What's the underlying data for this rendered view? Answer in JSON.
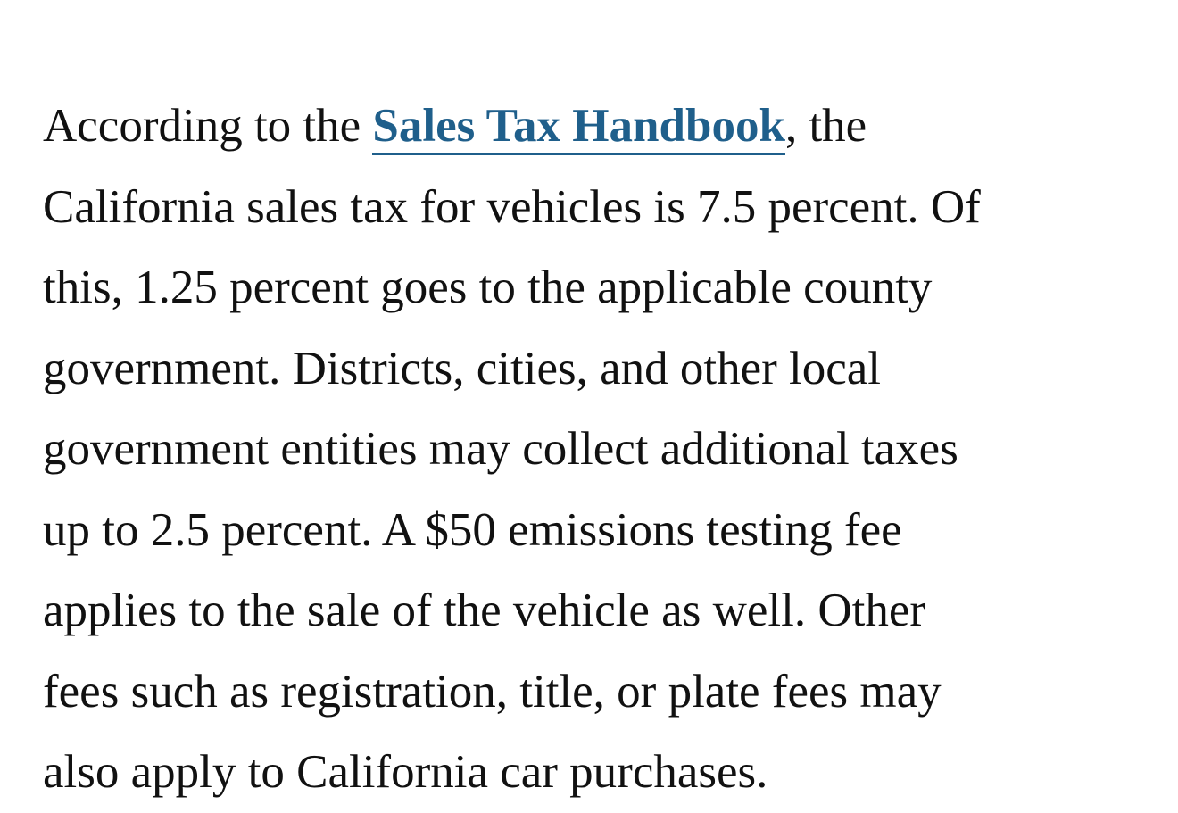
{
  "article": {
    "link_before": "According to the ",
    "link_text": "Sales Tax Handbook",
    "link_after": ", the",
    "lines": [
      "California sales tax for vehicles is 7.5 percent. Of",
      "this, 1.25 percent goes to the applicable county",
      "government. Districts, cities, and other local",
      "government entities may collect additional taxes",
      "up to 2.5 percent. A $50 emissions testing fee",
      "applies to the sale of the vehicle as well. Other",
      "fees such as registration, title, or plate fees may",
      "also apply to California car purchases."
    ],
    "link_color": "#1f5f8b"
  }
}
